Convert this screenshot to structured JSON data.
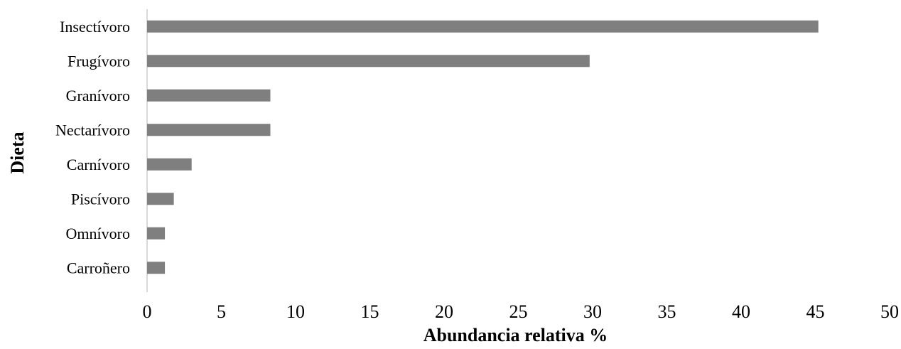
{
  "chart_data": {
    "type": "bar",
    "orientation": "horizontal",
    "categories": [
      "Insectívoro",
      "Frugívoro",
      "Granívoro",
      "Nectarívoro",
      "Carnívoro",
      "Piscívoro",
      "Omnívoro",
      "Carroñero"
    ],
    "values": [
      45.2,
      29.8,
      8.3,
      8.3,
      3.0,
      1.8,
      1.2,
      1.2
    ],
    "xlabel": "Abundancia relativa  %",
    "ylabel": "Dieta",
    "xlim": [
      0,
      50
    ],
    "xticks": [
      "0",
      "5",
      "10",
      "15",
      "20",
      "25",
      "30",
      "35",
      "40",
      "45",
      "50"
    ],
    "grid": false,
    "bar_color": "#7f7f7f",
    "axis_color": "#d9d9d9"
  }
}
